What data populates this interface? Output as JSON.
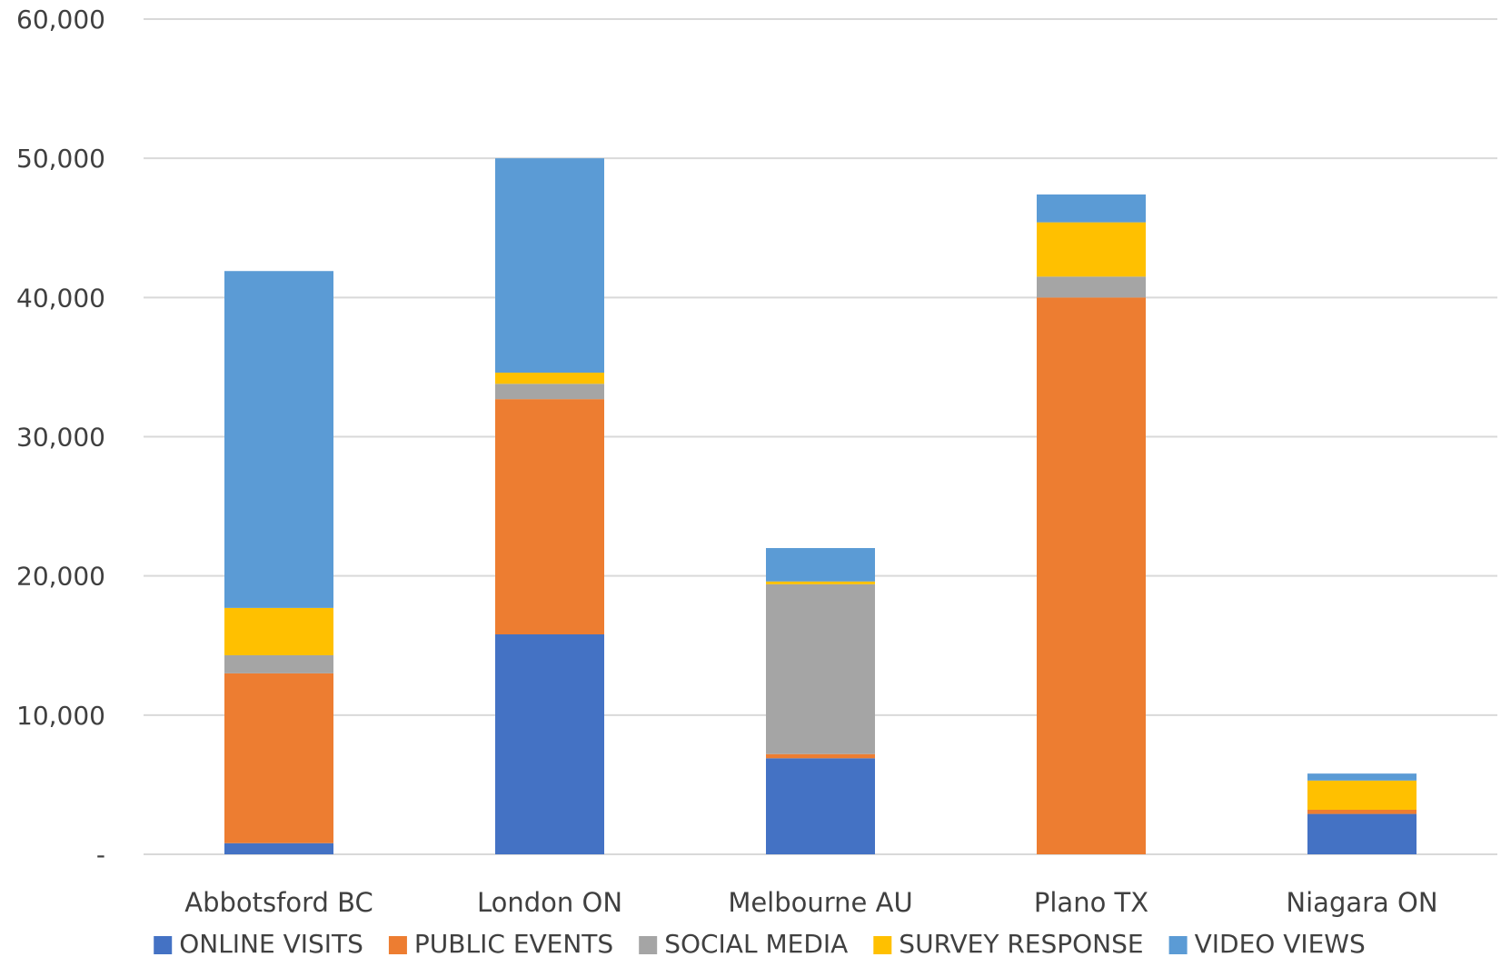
{
  "chart_data": {
    "type": "bar",
    "stacked": true,
    "categories": [
      "Abbotsford BC",
      "London ON",
      "Melbourne AU",
      "Plano TX",
      "Niagara ON"
    ],
    "series": [
      {
        "name": "ONLINE VISITS",
        "color": "#4472C4",
        "values": [
          800,
          15800,
          6900,
          0,
          2900
        ]
      },
      {
        "name": "PUBLIC EVENTS",
        "color": "#ED7D31",
        "values": [
          12200,
          16900,
          300,
          40000,
          300
        ]
      },
      {
        "name": "SOCIAL MEDIA",
        "color": "#A5A5A5",
        "values": [
          1300,
          1100,
          12200,
          1500,
          0
        ]
      },
      {
        "name": "SURVEY RESPONSE",
        "color": "#FFC000",
        "values": [
          3400,
          800,
          200,
          3900,
          2100
        ]
      },
      {
        "name": "VIDEO VIEWS",
        "color": "#5B9BD5",
        "values": [
          24200,
          15400,
          2400,
          2000,
          500
        ]
      }
    ],
    "ylim": [
      0,
      60000
    ],
    "yticks": [
      0,
      10000,
      20000,
      30000,
      40000,
      50000,
      60000
    ],
    "ytick_labels": [
      "-",
      "10,000",
      "20,000",
      "30,000",
      "40,000",
      "50,000",
      "60,000"
    ],
    "grid": true,
    "legend_position": "bottom"
  }
}
